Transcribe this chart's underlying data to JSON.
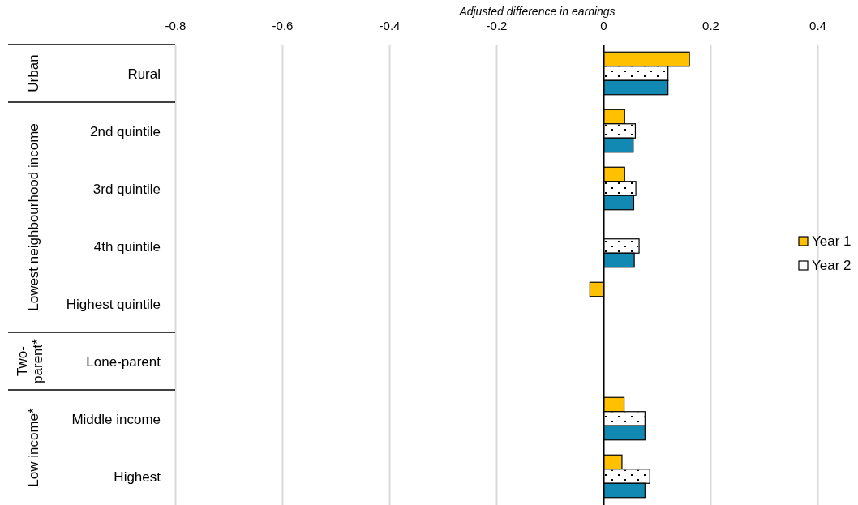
{
  "chart_data": {
    "type": "bar",
    "orientation": "horizontal",
    "xlabel": "Adjusted difference in earnings",
    "categories": [
      "Rural",
      "2nd quintile",
      "3rd quintile",
      "4th quintile",
      "Highest quintile",
      "Lone-parent",
      "Middle income",
      "Highest"
    ],
    "series": [
      {
        "name": "Year 1",
        "color": "#ffc000",
        "values": [
          0.16,
          0.039,
          0.039,
          null,
          -0.026,
          null,
          0.038,
          0.034
        ]
      },
      {
        "name": "Year 2",
        "color": "#ffffff",
        "values": [
          0.12,
          0.059,
          0.06,
          0.066,
          null,
          null,
          0.077,
          0.086
        ]
      },
      {
        "color": "#1289b3",
        "values": [
          0.12,
          0.055,
          0.056,
          0.057,
          null,
          null,
          0.077,
          0.077
        ]
      }
    ],
    "xlim": [
      -0.8,
      0.4
    ],
    "xticks": [
      -0.8,
      -0.6,
      -0.4,
      -0.2,
      0,
      0.2,
      0.4
    ],
    "grid": "x",
    "legend": "right",
    "annotations": [
      "Urban",
      "Lowest neighbourhood income",
      "Two-parent*",
      "Low income*"
    ]
  }
}
